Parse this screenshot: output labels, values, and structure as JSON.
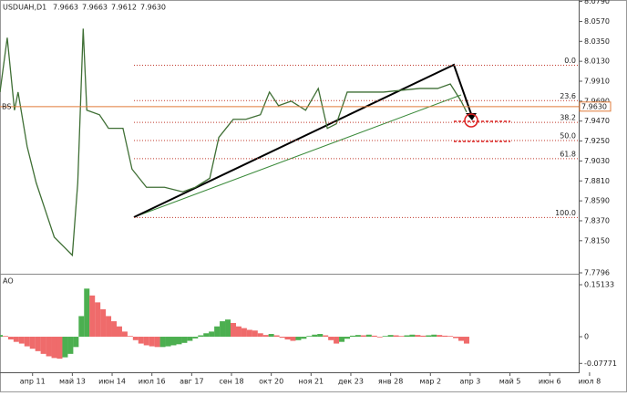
{
  "chart_data": [
    {
      "type": "line",
      "title": "USDUAH,D1",
      "ohlc": [
        7.9663,
        7.9663,
        7.9612,
        {
          "value": 7.963,
          "label": "7.9630"
        }
      ],
      "marker_label": "BS",
      "last_price": {
        "value": 7.963,
        "label": "7.9630"
      },
      "last_price_color": "#e07b39",
      "fib_color": "#c0392b",
      "fib_levels": [
        {
          "level": "0.0",
          "price": 8.0086
        },
        {
          "level": "23.6",
          "price": 7.9696
        },
        {
          "level": "38.2",
          "price": 7.9456
        },
        {
          "level": "50.0",
          "price": 7.9256
        },
        {
          "level": "61.8",
          "price": 7.9056
        },
        {
          "level": "100.0",
          "price": 7.8406
        }
      ],
      "series": [
        {
          "name": "USDUAH",
          "color": "#3f6f35",
          "x": [
            0,
            4,
            8,
            10,
            15,
            20,
            25,
            30,
            35,
            40,
            43,
            46,
            48,
            55,
            60,
            68,
            73,
            81,
            91,
            101,
            108,
            116,
            121,
            129,
            136,
            144,
            149,
            154,
            161,
            169,
            176,
            181,
            186,
            192,
            202,
            212,
            222,
            232,
            242,
            249,
            255,
            258
          ],
          "values": [
            7.979,
            8.039,
            7.959,
            7.979,
            7.919,
            7.879,
            7.849,
            7.819,
            7.809,
            7.799,
            7.879,
            8.049,
            7.959,
            7.954,
            7.939,
            7.939,
            7.894,
            7.874,
            7.874,
            7.869,
            7.874,
            7.884,
            7.929,
            7.949,
            7.949,
            7.954,
            7.979,
            7.964,
            7.969,
            7.959,
            7.983,
            7.939,
            7.944,
            7.979,
            7.979,
            7.979,
            7.981,
            7.983,
            7.983,
            7.988,
            7.969,
            7.957
          ]
        }
      ],
      "xlim": [
        0,
        320
      ],
      "xticks": [
        {
          "value": 18,
          "label": "апр 11"
        },
        {
          "value": 40,
          "label": "май 13"
        },
        {
          "value": 62,
          "label": "июн 14"
        },
        {
          "value": 84,
          "label": "июл 16"
        },
        {
          "value": 106,
          "label": "авг 17"
        },
        {
          "value": 128,
          "label": "сен 18"
        },
        {
          "value": 150,
          "label": "окт 20"
        },
        {
          "value": 172,
          "label": "ноя 21"
        },
        {
          "value": 194,
          "label": "дек 23"
        },
        {
          "value": 216,
          "label": "янв 28"
        },
        {
          "value": 238,
          "label": "мар 2"
        },
        {
          "value": 260,
          "label": "апр 3"
        },
        {
          "value": 282,
          "label": "май 5"
        },
        {
          "value": 304,
          "label": "июн 6"
        },
        {
          "value": 326,
          "label": "июл 8"
        }
      ],
      "ylim": [
        7.7796,
        8.0806
      ],
      "yticks": [
        {
          "value": 8.079,
          "label": "8.0790"
        },
        {
          "value": 8.057,
          "label": "8.0570"
        },
        {
          "value": 8.035,
          "label": "8.0350"
        },
        {
          "value": 8.013,
          "label": "8.0130"
        },
        {
          "value": 7.991,
          "label": "7.9910"
        },
        {
          "value": 7.969,
          "label": "7.9690"
        },
        {
          "value": 7.947,
          "label": "7.9470"
        },
        {
          "value": 7.925,
          "label": "7.9250"
        },
        {
          "value": 7.903,
          "label": "7.9030"
        },
        {
          "value": 7.881,
          "label": "7.8810"
        },
        {
          "value": 7.859,
          "label": "7.8590"
        },
        {
          "value": 7.837,
          "label": "7.8370"
        },
        {
          "value": 7.815,
          "label": "7.8150"
        },
        7.7796
      ]
    },
    {
      "type": "bar",
      "title": "AO",
      "up_color": "#4caf50",
      "down_color": "#ef6b6b",
      "x": [
        0,
        3,
        6,
        9,
        12,
        15,
        18,
        21,
        24,
        27,
        30,
        33,
        36,
        39,
        42,
        45,
        48,
        51,
        54,
        57,
        60,
        63,
        66,
        69,
        72,
        75,
        78,
        81,
        84,
        87,
        90,
        93,
        96,
        99,
        102,
        105,
        108,
        111,
        114,
        117,
        120,
        123,
        126,
        129,
        132,
        135,
        138,
        141,
        144,
        147,
        150,
        153,
        156,
        159,
        162,
        165,
        168,
        171,
        174,
        177,
        180,
        183,
        186,
        189,
        192,
        195,
        198,
        201,
        204,
        207,
        210,
        213,
        216,
        219,
        222,
        225,
        228,
        231,
        234,
        237,
        240,
        243,
        246,
        249,
        252,
        255,
        258
      ],
      "values": [
        0.005,
        0.002,
        -0.008,
        -0.015,
        -0.02,
        -0.028,
        -0.035,
        -0.042,
        -0.05,
        -0.057,
        -0.062,
        -0.064,
        -0.06,
        -0.05,
        -0.03,
        0.06,
        0.14,
        0.12,
        0.1,
        0.08,
        0.06,
        0.045,
        0.03,
        0.015,
        0.002,
        -0.01,
        -0.02,
        -0.025,
        -0.028,
        -0.03,
        -0.03,
        -0.028,
        -0.025,
        -0.022,
        -0.018,
        -0.012,
        -0.005,
        0.004,
        0.01,
        0.015,
        0.03,
        0.045,
        0.05,
        0.04,
        0.03,
        0.025,
        0.02,
        0.018,
        0.01,
        0.005,
        0.008,
        0.004,
        -0.003,
        -0.008,
        -0.012,
        -0.01,
        -0.006,
        0.002,
        0.006,
        0.008,
        0.004,
        -0.01,
        -0.02,
        -0.015,
        -0.006,
        0.003,
        0.005,
        0.004,
        0.006,
        0.003,
        -0.002,
        0.002,
        0.005,
        0.004,
        0.002,
        0.004,
        0.006,
        0.005,
        0.003,
        0.004,
        0.006,
        0.005,
        0.003,
        0.002,
        -0.004,
        -0.012,
        -0.02
      ],
      "ylim": [
        -0.1035,
        0.178
      ],
      "yticks": [
        0.15133,
        0,
        -0.07771
      ]
    }
  ]
}
